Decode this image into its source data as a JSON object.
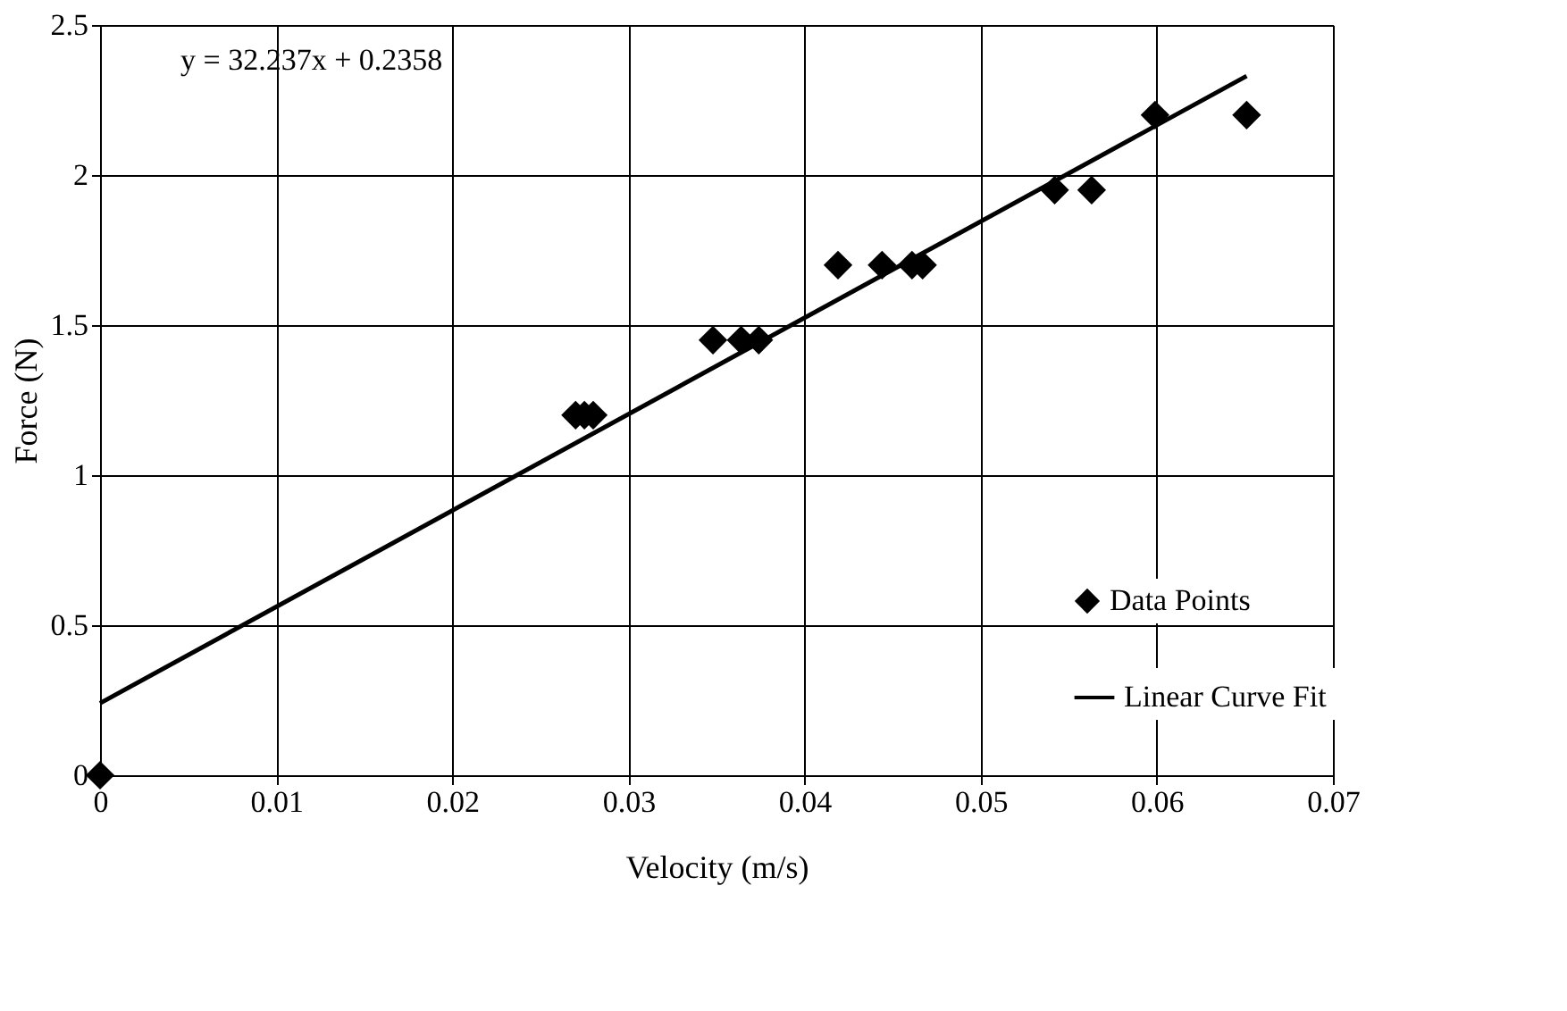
{
  "chart_data": {
    "type": "scatter",
    "xlabel": "Velocity (m/s)",
    "ylabel": "Force (N)",
    "annotations": [
      "y = 32.237x + 0.2358"
    ],
    "series": [
      {
        "name": "Data Points",
        "type": "scatter",
        "color": "#000000",
        "marker": "diamond",
        "x": [
          0,
          0.027,
          0.0275,
          0.028,
          0.0348,
          0.0364,
          0.0374,
          0.0419,
          0.0444,
          0.0461,
          0.0467,
          0.0542,
          0.0563,
          0.0599,
          0.0651
        ],
        "values": [
          0,
          1.2,
          1.2,
          1.2,
          1.45,
          1.45,
          1.45,
          1.7,
          1.7,
          1.7,
          1.7,
          1.95,
          1.95,
          2.2,
          2.2
        ]
      },
      {
        "name": "Linear Curve Fit",
        "type": "line",
        "color": "#000000",
        "line_style": "solid",
        "x": [
          0,
          0.0651
        ],
        "values": [
          0.24,
          2.33
        ]
      }
    ],
    "xlim": [
      0,
      0.07
    ],
    "xticks": [
      0,
      0.01,
      0.02,
      0.03,
      0.04,
      0.05,
      0.06,
      0.07
    ],
    "ylim": [
      0,
      2.5
    ],
    "yticks": [
      0,
      0.5,
      1,
      1.5,
      2,
      2.5
    ],
    "grid": true,
    "legend": "bottom right"
  }
}
